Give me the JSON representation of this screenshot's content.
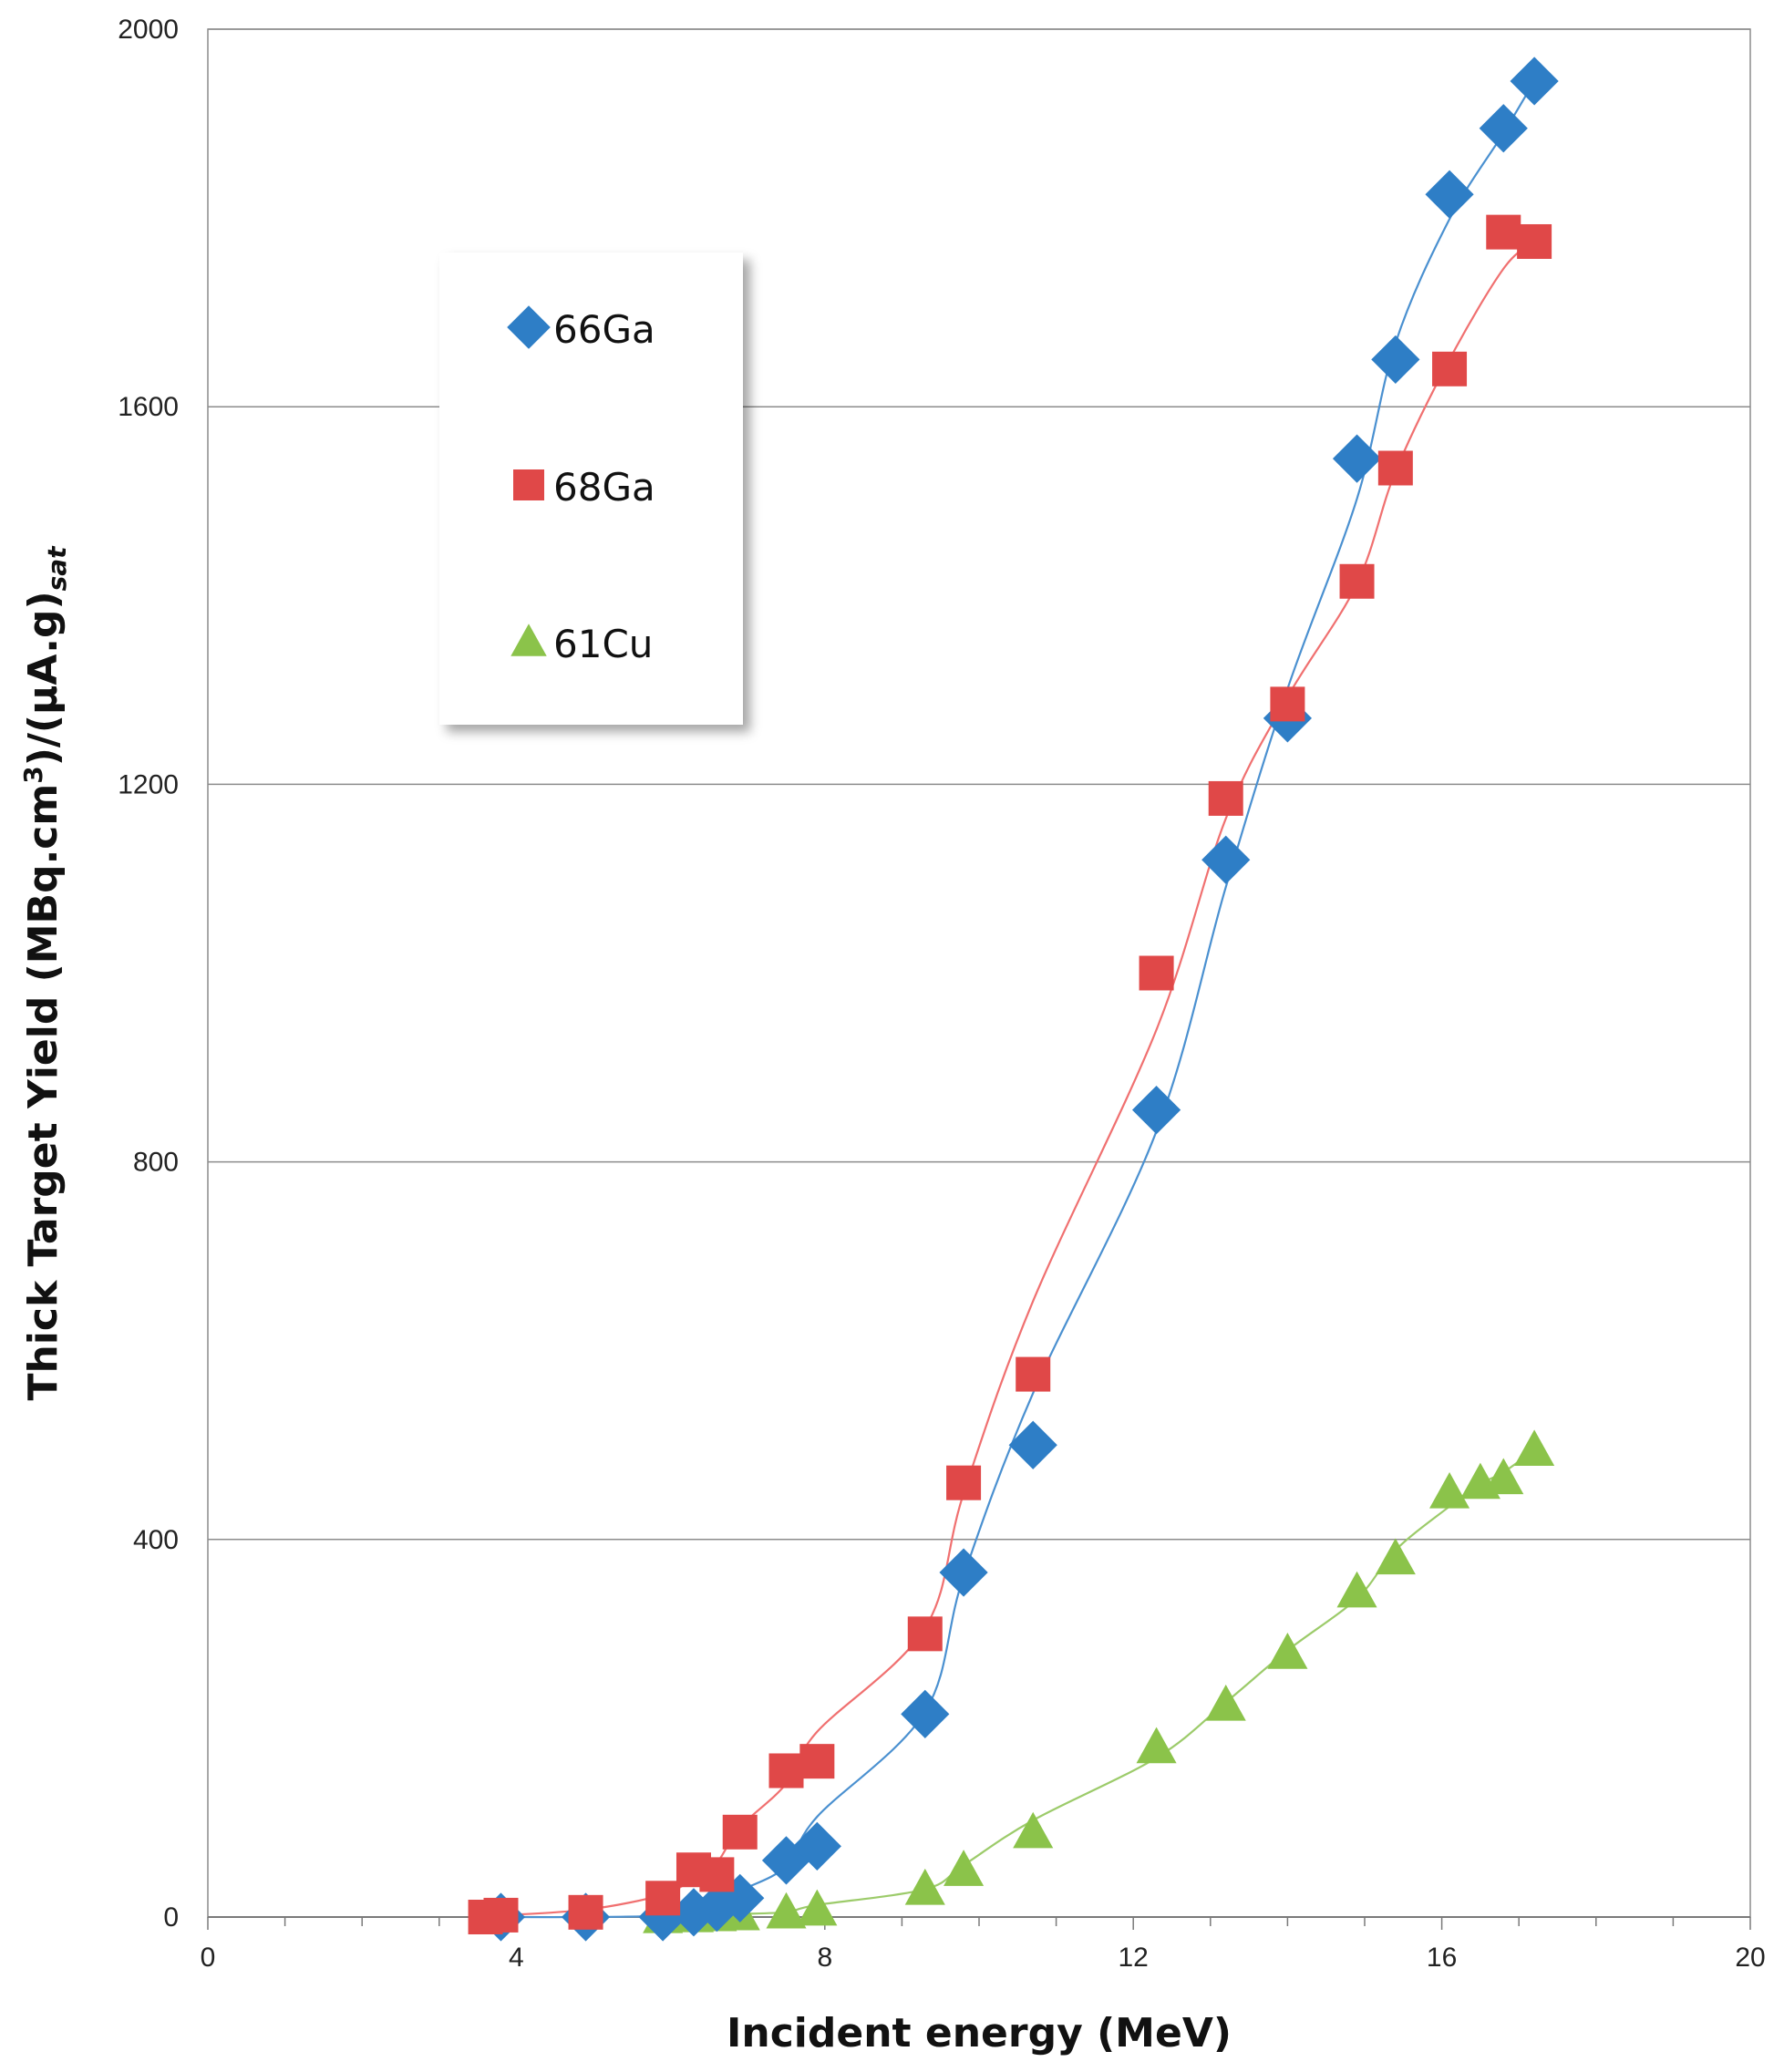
{
  "chart_data": {
    "type": "scatter",
    "title": "",
    "xlabel": "Incident energy (MeV)",
    "ylabel": {
      "main": "Thick Target Yield (MBq.cm",
      "sup": "3",
      "mid": ")/(µA.g)",
      "sub": "sat"
    },
    "xlim": [
      0,
      20
    ],
    "ylim": [
      0,
      2000
    ],
    "xticks": [
      "0",
      "4",
      "8",
      "12",
      "16",
      "20"
    ],
    "yticks": [
      "0",
      "400",
      "800",
      "1200",
      "1600",
      "2000"
    ],
    "grid": "horizontal",
    "legend_position": "upper-left",
    "series": [
      {
        "name": "66Ga",
        "marker": "diamond",
        "color": "#2E7EC6",
        "line_color": "#4A90D0",
        "x": [
          3.8,
          4.9,
          5.9,
          6.3,
          6.6,
          6.9,
          7.5,
          7.9,
          9.3,
          9.8,
          10.7,
          12.3,
          13.2,
          14.0,
          14.9,
          15.4,
          16.1,
          16.8,
          17.2
        ],
        "y": [
          0,
          0,
          0,
          5,
          10,
          20,
          60,
          75,
          215,
          365,
          500,
          855,
          1120,
          1270,
          1545,
          1650,
          1825,
          1895,
          1945
        ]
      },
      {
        "name": "68Ga",
        "marker": "square",
        "color": "#E04848",
        "line_color": "#F07070",
        "x": [
          3.6,
          3.8,
          4.9,
          5.9,
          6.3,
          6.6,
          6.9,
          7.5,
          7.9,
          9.3,
          9.8,
          10.7,
          12.3,
          13.2,
          14.0,
          14.9,
          15.4,
          16.1,
          16.8,
          17.2
        ],
        "y": [
          0,
          2,
          5,
          20,
          50,
          45,
          90,
          155,
          165,
          300,
          460,
          575,
          1000,
          1185,
          1285,
          1415,
          1535,
          1640,
          1785,
          1775
        ]
      },
      {
        "name": "61Cu",
        "marker": "triangle",
        "color": "#8BC34A",
        "line_color": "#9CCB6A",
        "x": [
          5.9,
          6.3,
          6.6,
          6.9,
          7.5,
          7.9,
          9.3,
          9.8,
          10.7,
          12.3,
          13.2,
          14.0,
          14.9,
          15.4,
          16.1,
          16.5,
          16.8,
          17.2
        ],
        "y": [
          0,
          1,
          2,
          3,
          5,
          8,
          30,
          50,
          90,
          180,
          225,
          280,
          345,
          380,
          450,
          460,
          465,
          495
        ]
      }
    ]
  }
}
